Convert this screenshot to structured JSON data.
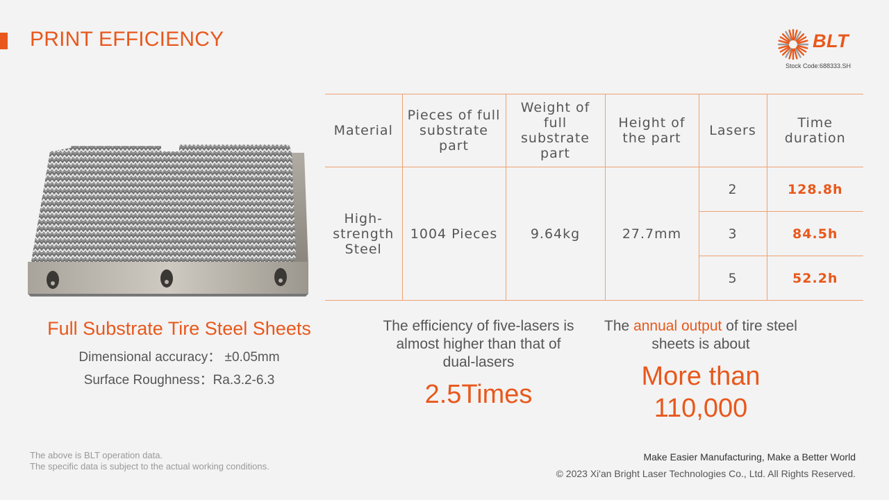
{
  "header": {
    "title": "PRINT EFFICIENCY"
  },
  "logo": {
    "text": "BLT",
    "stock_code": "Stock Code:688333.SH"
  },
  "product": {
    "title": "Full Substrate Tire Steel Sheets",
    "spec_accuracy": "Dimensional accuracy： ±0.05mm",
    "spec_roughness": "Surface Roughness：Ra.3.2-6.3"
  },
  "table": {
    "headers": [
      "Material",
      "Pieces of full substrate part",
      "Weight of full substrate part",
      "Height of the part",
      "Lasers",
      "Time duration"
    ],
    "material": "High-strength Steel",
    "pieces": "1004 Pieces",
    "weight": "9.64kg",
    "height": "27.7mm",
    "rows": [
      {
        "lasers": "2",
        "time": "128.8h"
      },
      {
        "lasers": "3",
        "time": "84.5h"
      },
      {
        "lasers": "5",
        "time": "52.2h"
      }
    ]
  },
  "stats": {
    "efficiency_text": "The efficiency of five-lasers is almost higher than that of dual-lasers",
    "efficiency_value": "2.5Times",
    "output_prefix": "The ",
    "output_highlight": "annual output",
    "output_suffix": " of tire steel sheets is about",
    "output_value": "More than 110,000"
  },
  "footer": {
    "note_line1": "The above is BLT operation data.",
    "note_line2": "The specific data is subject to the actual working conditions.",
    "slogan": "Make Easier Manufacturing, Make a Better World",
    "copyright": "© 2023 Xi'an Bright Laser Technologies Co., Ltd. All Rights Reserved."
  },
  "colors": {
    "accent": "#e8581c",
    "table_border": "#f0a070",
    "text": "#555555",
    "background": "#f3f3f3"
  }
}
